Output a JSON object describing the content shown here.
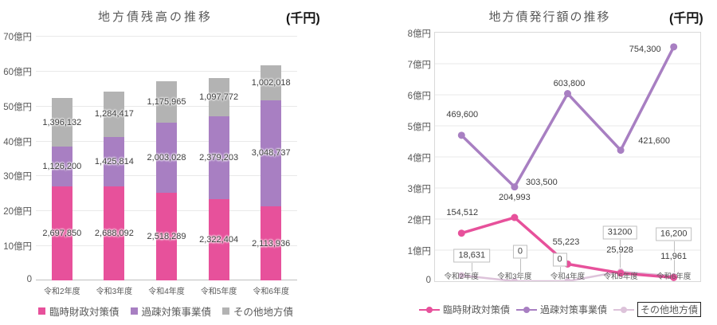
{
  "colors": {
    "pink": "#e7519b",
    "purple": "#a87fc2",
    "gray": "#b3b3b3",
    "light_pink": "#ddc3da",
    "grid": "#e9e9e9",
    "axis_line": "#bfbfbf",
    "plot_border": "#d9d9d9",
    "text_gray": "#595959",
    "label_dark": "#3d3d3d"
  },
  "chart_data": [
    {
      "type": "bar",
      "stacked": true,
      "title": "地方債残高の推移",
      "unit": "(千円)",
      "categories": [
        "令和2年度",
        "令和3年度",
        "令和4年度",
        "令和5年度",
        "令和6年度"
      ],
      "series": [
        {
          "name": "臨時財政対策債",
          "slug": "temporary-fiscal-countermeasure-bond",
          "color_key": "pink",
          "values": [
            2697850,
            2688092,
            2518289,
            2322404,
            2113936
          ],
          "labels": [
            "2,697,850",
            "2,688,092",
            "2,518,289",
            "2,322,404",
            "2,113,936"
          ]
        },
        {
          "name": "過疎対策事業債",
          "slug": "depopulation-countermeasure-project-bond",
          "color_key": "purple",
          "values": [
            1126200,
            1425814,
            2003028,
            2379203,
            3048737
          ],
          "labels": [
            "1,126,200",
            "1,425,814",
            "2,003,028",
            "2,379,203",
            "3,048,737"
          ]
        },
        {
          "name": "その他地方債",
          "slug": "other-local-bonds",
          "color_key": "gray",
          "values": [
            1396132,
            1284417,
            1175965,
            1097772,
            1002018
          ],
          "labels": [
            "1,396,132",
            "1,284,417",
            "1,175,965",
            "1,097,772",
            "1,002,018"
          ]
        }
      ],
      "ylim": [
        0,
        7000000
      ],
      "y_ticks": [
        {
          "value": 0,
          "label": "0"
        },
        {
          "value": 1000000,
          "label": "10億円"
        },
        {
          "value": 2000000,
          "label": "20億円"
        },
        {
          "value": 3000000,
          "label": "30億円"
        },
        {
          "value": 4000000,
          "label": "40億円"
        },
        {
          "value": 5000000,
          "label": "50億円"
        },
        {
          "value": 6000000,
          "label": "60億円"
        },
        {
          "value": 7000000,
          "label": "70億円"
        }
      ],
      "grid": true,
      "legend_position": "bottom"
    },
    {
      "type": "line",
      "title": "地方債発行額の推移",
      "unit": "(千円)",
      "categories": [
        "令和2年度",
        "令和3年度",
        "令和4年度",
        "令和5年度",
        "令和6年度"
      ],
      "series": [
        {
          "name": "臨時財政対策債",
          "slug": "temporary-fiscal-countermeasure-bond",
          "color_key": "pink",
          "values": [
            154512,
            204993,
            55223,
            25928,
            11961
          ],
          "labels": [
            "154,512",
            "204,993",
            "55,223",
            "25,928",
            "11,961"
          ],
          "boxed_labels": false,
          "legend_boxed": false,
          "label_offsets": [
            {
              "dx": 1,
              "dy": -26
            },
            {
              "dx": 0,
              "dy": -25
            },
            {
              "dx": -2,
              "dy": -27
            },
            {
              "dx": -1,
              "dy": -29
            },
            {
              "dx": 0,
              "dy": -26
            }
          ]
        },
        {
          "name": "過疎対策事業債",
          "slug": "depopulation-countermeasure-project-bond",
          "color_key": "purple",
          "values": [
            469600,
            303500,
            603800,
            421600,
            754300
          ],
          "labels": [
            "469,600",
            "303,500",
            "603,800",
            "421,600",
            "754,300"
          ],
          "boxed_labels": false,
          "legend_boxed": false,
          "label_offsets": [
            {
              "dx": 1,
              "dy": -26
            },
            {
              "dx": 34,
              "dy": -6
            },
            {
              "dx": 2,
              "dy": -13
            },
            {
              "dx": 42,
              "dy": -12
            },
            {
              "dx": -36,
              "dy": 3
            }
          ]
        },
        {
          "name": "その他地方債",
          "slug": "other-local-bonds",
          "color_key": "light_pink",
          "values": [
            18631,
            0,
            0,
            31200,
            16200
          ],
          "labels": [
            "18,631",
            "0",
            "0",
            "31200",
            "16,200"
          ],
          "boxed_labels": true,
          "legend_boxed": true,
          "label_offsets": [
            {
              "dx": 13,
              "dy": -25
            },
            {
              "dx": 7,
              "dy": -37
            },
            {
              "dx": -10,
              "dy": -27
            },
            {
              "dx": -1,
              "dy": -49
            },
            {
              "dx": 0,
              "dy": -53
            }
          ]
        }
      ],
      "ylim": [
        0,
        800000
      ],
      "y_ticks": [
        {
          "value": 0,
          "label": "0"
        },
        {
          "value": 100000,
          "label": "1億円"
        },
        {
          "value": 200000,
          "label": "2億円"
        },
        {
          "value": 300000,
          "label": "3億円"
        },
        {
          "value": 400000,
          "label": "4億円"
        },
        {
          "value": 500000,
          "label": "5億円"
        },
        {
          "value": 600000,
          "label": "6億円"
        },
        {
          "value": 700000,
          "label": "7億円"
        },
        {
          "value": 800000,
          "label": "8億円"
        }
      ],
      "grid": true,
      "plot_border": true,
      "legend_position": "bottom"
    }
  ]
}
